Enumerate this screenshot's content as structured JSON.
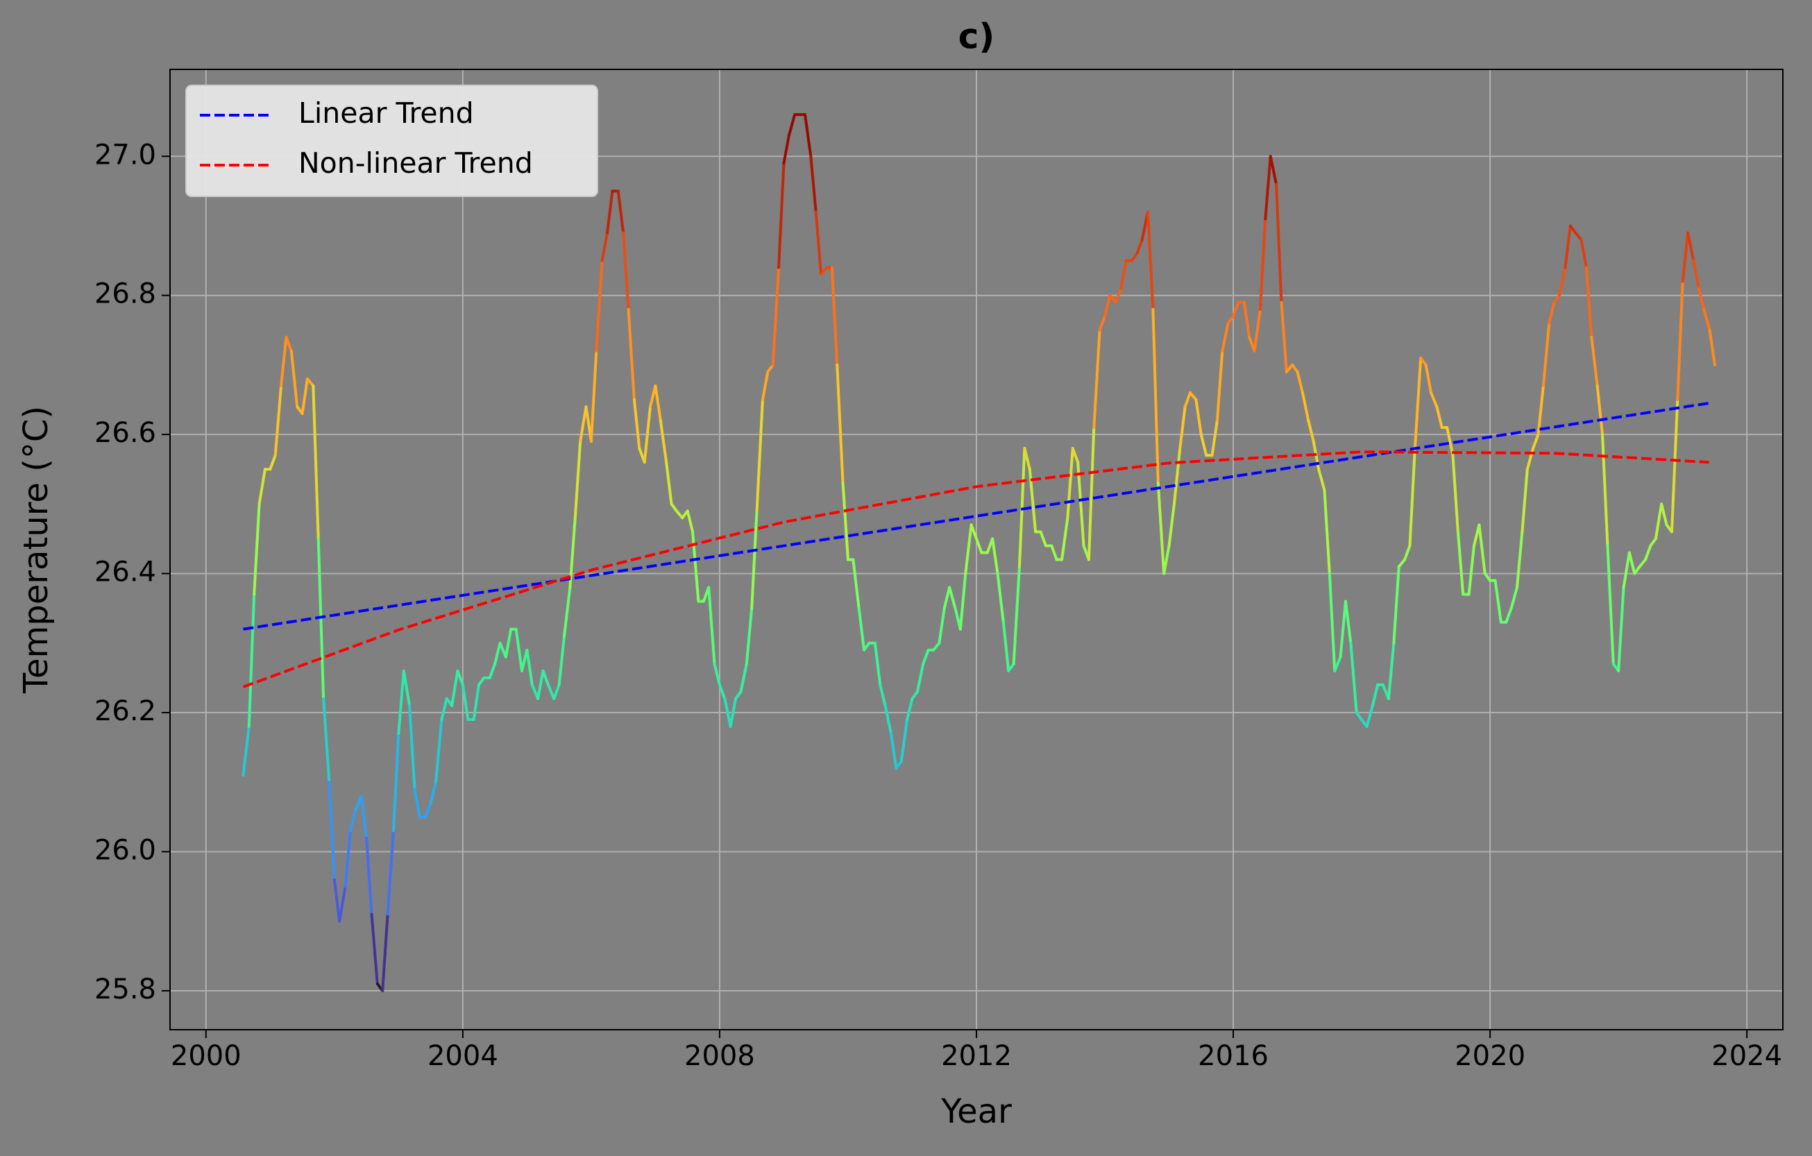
{
  "chart_data": {
    "type": "line",
    "title": "c)",
    "xlabel": "Year",
    "ylabel": "Temperature (°C)",
    "colormap": "turbo",
    "grid": true,
    "legend": "upper left",
    "x": [
      2000.58,
      2000.67,
      2000.75,
      2000.83,
      2000.92,
      2001.0,
      2001.08,
      2001.17,
      2001.25,
      2001.33,
      2001.42,
      2001.5,
      2001.58,
      2001.67,
      2001.75,
      2001.83,
      2001.92,
      2002.0,
      2002.08,
      2002.17,
      2002.25,
      2002.33,
      2002.42,
      2002.5,
      2002.58,
      2002.67,
      2002.75,
      2002.83,
      2002.92,
      2003.0,
      2003.08,
      2003.17,
      2003.25,
      2003.33,
      2003.42,
      2003.5,
      2003.58,
      2003.67,
      2003.75,
      2003.83,
      2003.92,
      2004.0,
      2004.08,
      2004.17,
      2004.25,
      2004.33,
      2004.42,
      2004.5,
      2004.58,
      2004.67,
      2004.75,
      2004.83,
      2004.92,
      2005.0,
      2005.08,
      2005.17,
      2005.25,
      2005.33,
      2005.42,
      2005.5,
      2005.58,
      2005.67,
      2005.75,
      2005.83,
      2005.92,
      2006.0,
      2006.08,
      2006.17,
      2006.25,
      2006.33,
      2006.42,
      2006.5,
      2006.58,
      2006.67,
      2006.75,
      2006.83,
      2006.92,
      2007.0,
      2007.08,
      2007.17,
      2007.25,
      2007.33,
      2007.42,
      2007.5,
      2007.58,
      2007.67,
      2007.75,
      2007.83,
      2007.92,
      2008.0,
      2008.08,
      2008.17,
      2008.25,
      2008.33,
      2008.42,
      2008.5,
      2008.58,
      2008.67,
      2008.75,
      2008.83,
      2008.92,
      2009.0,
      2009.08,
      2009.17,
      2009.25,
      2009.33,
      2009.42,
      2009.5,
      2009.58,
      2009.67,
      2009.75,
      2009.83,
      2009.92,
      2010.0,
      2010.08,
      2010.17,
      2010.25,
      2010.33,
      2010.42,
      2010.5,
      2010.58,
      2010.67,
      2010.75,
      2010.83,
      2010.92,
      2011.0,
      2011.08,
      2011.17,
      2011.25,
      2011.33,
      2011.42,
      2011.5,
      2011.58,
      2011.67,
      2011.75,
      2011.83,
      2011.92,
      2012.0,
      2012.08,
      2012.17,
      2012.25,
      2012.33,
      2012.42,
      2012.5,
      2012.58,
      2012.67,
      2012.75,
      2012.83,
      2012.92,
      2013.0,
      2013.08,
      2013.17,
      2013.25,
      2013.33,
      2013.42,
      2013.5,
      2013.58,
      2013.67,
      2013.75,
      2013.83,
      2013.92,
      2014.0,
      2014.08,
      2014.17,
      2014.25,
      2014.33,
      2014.42,
      2014.5,
      2014.58,
      2014.67,
      2014.75,
      2014.83,
      2014.92,
      2015.0,
      2015.08,
      2015.17,
      2015.25,
      2015.33,
      2015.42,
      2015.5,
      2015.58,
      2015.67,
      2015.75,
      2015.83,
      2015.92,
      2016.0,
      2016.08,
      2016.17,
      2016.25,
      2016.33,
      2016.42,
      2016.5,
      2016.58,
      2016.67,
      2016.75,
      2016.83,
      2016.92,
      2017.0,
      2017.08,
      2017.17,
      2017.25,
      2017.33,
      2017.42,
      2017.5,
      2017.58,
      2017.67,
      2017.75,
      2017.83,
      2017.92,
      2018.0,
      2018.08,
      2018.17,
      2018.25,
      2018.33,
      2018.42,
      2018.5,
      2018.58,
      2018.67,
      2018.75,
      2018.83,
      2018.92,
      2019.0,
      2019.08,
      2019.17,
      2019.25,
      2019.33,
      2019.42,
      2019.5,
      2019.58,
      2019.67,
      2019.75,
      2019.83,
      2019.92,
      2020.0,
      2020.08,
      2020.17,
      2020.25,
      2020.33,
      2020.42,
      2020.5,
      2020.58,
      2020.67,
      2020.75,
      2020.83,
      2020.92,
      2021.0,
      2021.08,
      2021.17,
      2021.25,
      2021.33,
      2021.42,
      2021.5,
      2021.58,
      2021.67,
      2021.75,
      2021.83,
      2021.92,
      2022.0,
      2022.08,
      2022.17,
      2022.25,
      2022.33,
      2022.42,
      2022.5,
      2022.58,
      2022.67,
      2022.75,
      2022.83,
      2022.92,
      2023.0,
      2023.08,
      2023.17,
      2023.25,
      2023.33,
      2023.42,
      2023.5
    ],
    "values": [
      26.11,
      26.18,
      26.37,
      26.5,
      26.55,
      26.55,
      26.57,
      26.67,
      26.74,
      26.72,
      26.64,
      26.63,
      26.68,
      26.67,
      26.45,
      26.22,
      26.1,
      25.96,
      25.9,
      25.95,
      26.03,
      26.06,
      26.08,
      26.02,
      25.91,
      25.81,
      25.8,
      25.91,
      26.03,
      26.17,
      26.26,
      26.21,
      26.09,
      26.05,
      26.05,
      26.07,
      26.1,
      26.19,
      26.22,
      26.21,
      26.26,
      26.24,
      26.19,
      26.19,
      26.24,
      26.25,
      26.25,
      26.27,
      26.3,
      26.28,
      26.32,
      26.32,
      26.26,
      26.29,
      26.24,
      26.22,
      26.26,
      26.24,
      26.22,
      26.24,
      26.31,
      26.38,
      26.48,
      26.59,
      26.64,
      26.59,
      26.72,
      26.85,
      26.89,
      26.95,
      26.95,
      26.89,
      26.78,
      26.65,
      26.58,
      26.56,
      26.64,
      26.67,
      26.62,
      26.56,
      26.5,
      26.49,
      26.48,
      26.49,
      26.46,
      26.36,
      26.36,
      26.38,
      26.27,
      26.24,
      26.22,
      26.18,
      26.22,
      26.23,
      26.27,
      26.35,
      26.49,
      26.65,
      26.69,
      26.7,
      26.84,
      26.99,
      27.03,
      27.06,
      27.06,
      27.06,
      27.0,
      26.92,
      26.83,
      26.84,
      26.84,
      26.7,
      26.53,
      26.42,
      26.42,
      26.35,
      26.29,
      26.3,
      26.3,
      26.24,
      26.21,
      26.17,
      26.12,
      26.13,
      26.19,
      26.22,
      26.23,
      26.27,
      26.29,
      26.29,
      26.3,
      26.35,
      26.38,
      26.35,
      26.32,
      26.4,
      26.47,
      26.45,
      26.43,
      26.43,
      26.45,
      26.4,
      26.33,
      26.26,
      26.27,
      26.41,
      26.58,
      26.55,
      26.46,
      26.46,
      26.44,
      26.44,
      26.42,
      26.42,
      26.48,
      26.58,
      26.56,
      26.44,
      26.42,
      26.61,
      26.75,
      26.77,
      26.8,
      26.79,
      26.81,
      26.85,
      26.85,
      26.86,
      26.88,
      26.92,
      26.78,
      26.53,
      26.4,
      26.44,
      26.5,
      26.58,
      26.64,
      26.66,
      26.65,
      26.6,
      26.57,
      26.57,
      26.62,
      26.72,
      26.76,
      26.77,
      26.79,
      26.79,
      26.74,
      26.72,
      26.78,
      26.91,
      27.0,
      26.96,
      26.79,
      26.69,
      26.7,
      26.69,
      26.66,
      26.62,
      26.59,
      26.55,
      26.52,
      26.4,
      26.26,
      26.28,
      26.36,
      26.3,
      26.2,
      26.19,
      26.18,
      26.21,
      26.24,
      26.24,
      26.22,
      26.3,
      26.41,
      26.42,
      26.44,
      26.58,
      26.71,
      26.7,
      26.66,
      26.64,
      26.61,
      26.61,
      26.57,
      26.46,
      26.37,
      26.37,
      26.44,
      26.47,
      26.4,
      26.39,
      26.39,
      26.33,
      26.33,
      26.35,
      26.38,
      26.46,
      26.55,
      26.58,
      26.6,
      26.67,
      26.76,
      26.79,
      26.8,
      26.84,
      26.9,
      26.89,
      26.88,
      26.84,
      26.74,
      26.67,
      26.6,
      26.44,
      26.27,
      26.26,
      26.38,
      26.43,
      26.4,
      26.41,
      26.42,
      26.44,
      26.45,
      26.5,
      26.47,
      26.46,
      26.65,
      26.82,
      26.89,
      26.85,
      26.81,
      26.78,
      26.75,
      26.7
    ],
    "series": [
      {
        "name": "Linear Trend",
        "color": "#0000ff",
        "dashed": true,
        "x": [
          2000.58,
          2023.41
        ],
        "values": [
          26.32,
          26.645
        ]
      },
      {
        "name": "Non-linear Trend",
        "color": "#ff0000",
        "dashed": true,
        "x": [
          2000.58,
          2003,
          2006,
          2009,
          2012,
          2015,
          2018,
          2021,
          2023.41
        ],
        "values": [
          26.237,
          26.319,
          26.405,
          26.474,
          26.525,
          26.559,
          26.575,
          26.573,
          26.56
        ]
      }
    ],
    "xlim": [
      1999.44,
      2024.56
    ],
    "xticks": [
      2000,
      2004,
      2008,
      2012,
      2016,
      2020,
      2024
    ],
    "ylim": [
      25.744,
      27.125
    ],
    "yticks": [
      25.8,
      {
        "value": 26,
        "label": "26.0"
      },
      26.2,
      26.4,
      26.6,
      26.8,
      {
        "value": 27,
        "label": "27.0"
      }
    ]
  }
}
